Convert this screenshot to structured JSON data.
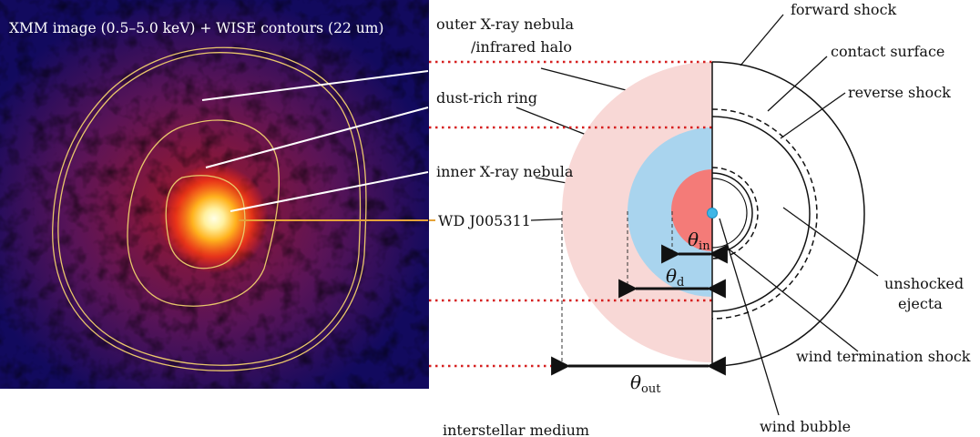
{
  "image_panel": {
    "caption": "XMM image (0.5–5.0 keV) + WISE contours (22 um)"
  },
  "labels": {
    "outer_nebula_line1": "outer X-ray nebula",
    "outer_nebula_line2": "/infrared halo",
    "dust_ring": "dust-rich ring",
    "inner_nebula": "inner X-ray nebula",
    "wd": "WD J005311",
    "ism": "interstellar medium",
    "forward_shock": "forward shock",
    "contact_surface": "contact surface",
    "reverse_shock": "reverse shock",
    "unshocked_line1": "unshocked",
    "unshocked_line2": "ejecta",
    "wind_termination": "wind termination shock",
    "wind_bubble": "wind bubble"
  },
  "angles": {
    "theta_symbol": "θ",
    "inner_sub": "in",
    "dust_sub": "d",
    "outer_sub": "out"
  },
  "colors": {
    "outer_halo": "#f8d8d6",
    "dust_ring": "#a9d4ee",
    "inner_nebula": "#f47b78",
    "wd_dot": "#3fb6e6",
    "guide_dots": "#d62020",
    "xray_dark": "#0b0a55",
    "xray_mid": "#d2201e",
    "xray_bright": "#fff6c0",
    "contour": "#e9c66b"
  }
}
